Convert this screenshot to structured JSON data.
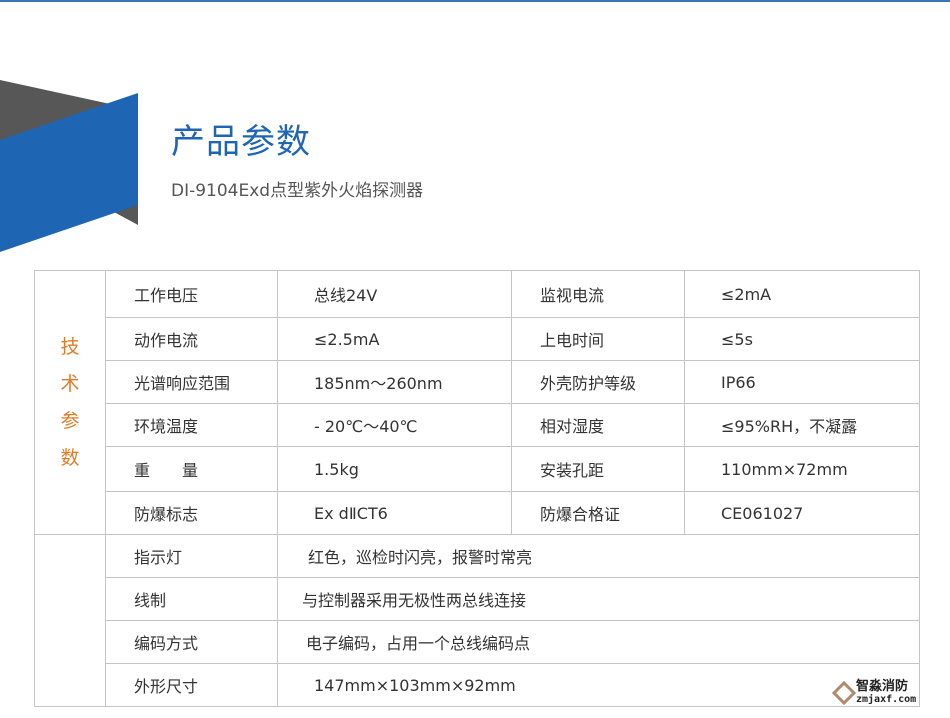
{
  "header": {
    "title": "产品参数",
    "subtitle": "DI-9104Exd点型紫外火焰探测器"
  },
  "colors": {
    "accent": "#1e66b3",
    "secondary": "#555555",
    "side_label": "#e07b28"
  },
  "side_label": [
    "技",
    "术",
    "参",
    "数"
  ],
  "rows": [
    {
      "k1": "工作电压",
      "v1": "总线24V",
      "k2": "监视电流",
      "v2": "≤2mA"
    },
    {
      "k1": "动作电流",
      "v1": "≤2.5mA",
      "k2": "上电时间",
      "v2": "≤5s"
    },
    {
      "k1": "光谱响应范围",
      "v1": "185nm～260nm",
      "k2": "外壳防护等级",
      "v2": "IP66"
    },
    {
      "k1": "环境温度",
      "v1": "- 20℃～40℃",
      "k2": "相对湿度",
      "v2": "≤95%RH，不凝露"
    },
    {
      "k1": "重　　量",
      "v1": "1.5kg",
      "k2": "安装孔距",
      "v2": "110mm×72mm"
    },
    {
      "k1": "防爆标志",
      "v1": "Ex dⅡCT6",
      "k2": "防爆合格证",
      "v2": "CE061027"
    }
  ],
  "wide_rows": [
    {
      "k": "指示灯",
      "v": "红色，巡检时闪亮，报警时常亮"
    },
    {
      "k": "线制",
      "v": "与控制器采用无极性两总线连接"
    },
    {
      "k": "编码方式",
      "v": "电子编码，占用一个总线编码点"
    },
    {
      "k": "外形尺寸",
      "v": "147mm×103mm×92mm"
    }
  ],
  "watermark": {
    "name": "智淼消防",
    "url": "zmjaxf.com"
  }
}
